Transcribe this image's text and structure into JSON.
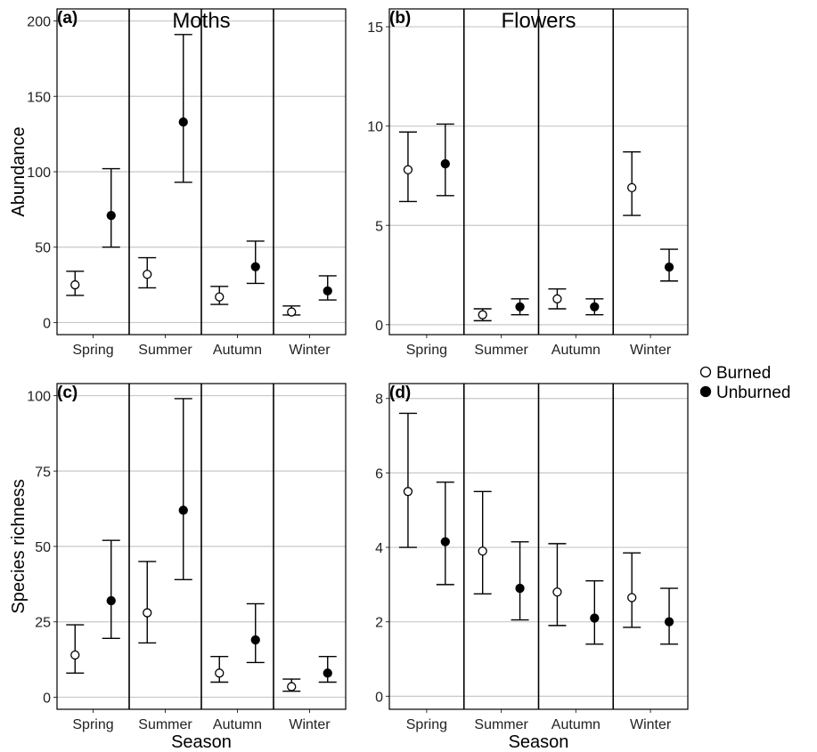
{
  "legend": {
    "position": "right",
    "items": [
      {
        "label": "Burned",
        "fill": "#ffffff",
        "stroke": "#000000"
      },
      {
        "label": "Unburned",
        "fill": "#000000",
        "stroke": "#000000"
      }
    ]
  },
  "colors": {
    "grid": "#c8c8c8",
    "frame": "#000000",
    "background": "#ffffff"
  },
  "chart_data": [
    {
      "type": "scatter",
      "panel": "(a)",
      "title": "Moths",
      "ylabel": "Abundance",
      "xlabel": "",
      "categories": [
        "Spring",
        "Summer",
        "Autumn",
        "Winter"
      ],
      "ylim": [
        -8,
        208
      ],
      "yticks": [
        0,
        50,
        100,
        150,
        200
      ],
      "grid": true,
      "series": [
        {
          "name": "Burned",
          "values": [
            25,
            32,
            17,
            7
          ],
          "lower": [
            18,
            23,
            12,
            5
          ],
          "upper": [
            34,
            43,
            24,
            11
          ]
        },
        {
          "name": "Unburned",
          "values": [
            71,
            133,
            37,
            21
          ],
          "lower": [
            50,
            93,
            26,
            15
          ],
          "upper": [
            102,
            191,
            54,
            31
          ]
        }
      ]
    },
    {
      "type": "scatter",
      "panel": "(b)",
      "title": "Flowers",
      "ylabel": "",
      "xlabel": "",
      "categories": [
        "Spring",
        "Summer",
        "Autumn",
        "Winter"
      ],
      "ylim": [
        -0.5,
        15.9
      ],
      "yticks": [
        0,
        5,
        10,
        15
      ],
      "grid": true,
      "series": [
        {
          "name": "Burned",
          "values": [
            7.8,
            0.5,
            1.3,
            6.9
          ],
          "lower": [
            6.2,
            0.2,
            0.8,
            5.5
          ],
          "upper": [
            9.7,
            0.8,
            1.8,
            8.7
          ]
        },
        {
          "name": "Unburned",
          "values": [
            8.1,
            0.9,
            0.9,
            2.9
          ],
          "lower": [
            6.5,
            0.5,
            0.5,
            2.2
          ],
          "upper": [
            10.1,
            1.3,
            1.3,
            3.8
          ]
        }
      ]
    },
    {
      "type": "scatter",
      "panel": "(c)",
      "title": "",
      "ylabel": "Species richness",
      "xlabel": "Season",
      "categories": [
        "Spring",
        "Summer",
        "Autumn",
        "Winter"
      ],
      "ylim": [
        -4,
        104
      ],
      "yticks": [
        0,
        25,
        50,
        75,
        100
      ],
      "grid": true,
      "series": [
        {
          "name": "Burned",
          "values": [
            14,
            28,
            8,
            3.5
          ],
          "lower": [
            8,
            18,
            5,
            2
          ],
          "upper": [
            24,
            45,
            13.5,
            6
          ]
        },
        {
          "name": "Unburned",
          "values": [
            32,
            62,
            19,
            8
          ],
          "lower": [
            19.5,
            39,
            11.5,
            5
          ],
          "upper": [
            52,
            99,
            31,
            13.5
          ]
        }
      ]
    },
    {
      "type": "scatter",
      "panel": "(d)",
      "title": "",
      "ylabel": "",
      "xlabel": "Season",
      "categories": [
        "Spring",
        "Summer",
        "Autumn",
        "Winter"
      ],
      "ylim": [
        -0.35,
        8.4
      ],
      "yticks": [
        0,
        2,
        4,
        6,
        8
      ],
      "grid": true,
      "series": [
        {
          "name": "Burned",
          "values": [
            5.5,
            3.9,
            2.8,
            2.65
          ],
          "lower": [
            4.0,
            2.75,
            1.9,
            1.85
          ],
          "upper": [
            7.6,
            5.5,
            4.1,
            3.85
          ]
        },
        {
          "name": "Unburned",
          "values": [
            4.15,
            2.9,
            2.1,
            2.0
          ],
          "lower": [
            3.0,
            2.05,
            1.4,
            1.4
          ],
          "upper": [
            5.75,
            4.15,
            3.1,
            2.9
          ]
        }
      ]
    }
  ]
}
